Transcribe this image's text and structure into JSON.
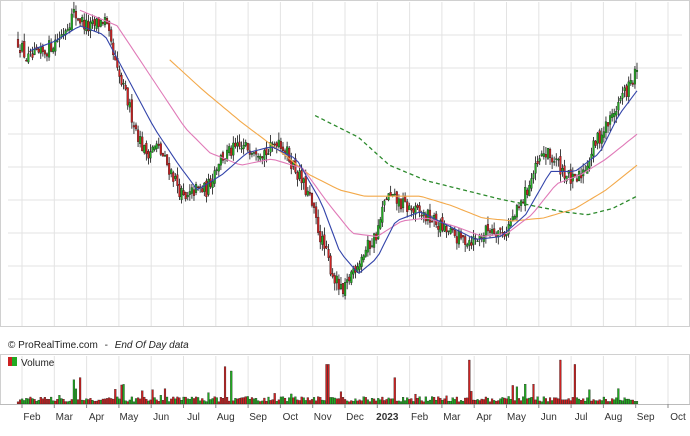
{
  "source_label": "© ProRealTime.com",
  "source_separator": "-",
  "eod_label": "End Of Day data",
  "volume_label": "Volume",
  "colors": {
    "up": "#22aa22",
    "down": "#cc2222",
    "wick": "#111111",
    "ma_fast": "#3344aa",
    "ma_mid": "#e07ab8",
    "ma_slow": "#f3a94a",
    "ma_long": "#2c8a2c",
    "grid": "#e3e3e3"
  },
  "chart_data": {
    "type": "line",
    "description_series": "daily candlestick price with 4 moving averages and volume bars",
    "x_axis_labels": [
      "Feb",
      "Mar",
      "Apr",
      "May",
      "Jun",
      "Jul",
      "Aug",
      "Sep",
      "Oct",
      "Nov",
      "Dec",
      "2023",
      "Feb",
      "Mar",
      "Apr",
      "May",
      "Jun",
      "Jul",
      "Aug",
      "Sep",
      "Oct"
    ],
    "x_axis_label_bold": [
      false,
      false,
      false,
      false,
      false,
      false,
      false,
      false,
      false,
      false,
      false,
      true,
      false,
      false,
      false,
      false,
      false,
      false,
      false,
      false,
      false
    ],
    "y_axis_labels": [],
    "ylim": [
      0,
      100
    ],
    "price_close_keypoints": [
      {
        "t": 0,
        "v": 88
      },
      {
        "t": 0.015,
        "v": 82
      },
      {
        "t": 0.04,
        "v": 84
      },
      {
        "t": 0.07,
        "v": 90
      },
      {
        "t": 0.09,
        "v": 97
      },
      {
        "t": 0.115,
        "v": 92
      },
      {
        "t": 0.14,
        "v": 95
      },
      {
        "t": 0.16,
        "v": 78
      },
      {
        "t": 0.175,
        "v": 70
      },
      {
        "t": 0.19,
        "v": 60
      },
      {
        "t": 0.205,
        "v": 52
      },
      {
        "t": 0.225,
        "v": 54
      },
      {
        "t": 0.25,
        "v": 45
      },
      {
        "t": 0.27,
        "v": 36
      },
      {
        "t": 0.285,
        "v": 40
      },
      {
        "t": 0.305,
        "v": 40
      },
      {
        "t": 0.325,
        "v": 50
      },
      {
        "t": 0.35,
        "v": 53
      },
      {
        "t": 0.38,
        "v": 54
      },
      {
        "t": 0.405,
        "v": 52
      },
      {
        "t": 0.42,
        "v": 57
      },
      {
        "t": 0.445,
        "v": 48
      },
      {
        "t": 0.47,
        "v": 38
      },
      {
        "t": 0.49,
        "v": 24
      },
      {
        "t": 0.51,
        "v": 12
      },
      {
        "t": 0.525,
        "v": 6
      },
      {
        "t": 0.54,
        "v": 14
      },
      {
        "t": 0.56,
        "v": 20
      },
      {
        "t": 0.58,
        "v": 26
      },
      {
        "t": 0.595,
        "v": 38
      },
      {
        "t": 0.615,
        "v": 36
      },
      {
        "t": 0.64,
        "v": 33
      },
      {
        "t": 0.665,
        "v": 31
      },
      {
        "t": 0.69,
        "v": 27
      },
      {
        "t": 0.715,
        "v": 24
      },
      {
        "t": 0.74,
        "v": 24
      },
      {
        "t": 0.765,
        "v": 28
      },
      {
        "t": 0.785,
        "v": 26
      },
      {
        "t": 0.81,
        "v": 34
      },
      {
        "t": 0.83,
        "v": 44
      },
      {
        "t": 0.85,
        "v": 52
      },
      {
        "t": 0.87,
        "v": 49
      },
      {
        "t": 0.89,
        "v": 44
      },
      {
        "t": 0.9,
        "v": 42
      },
      {
        "t": 0.915,
        "v": 47
      },
      {
        "t": 0.935,
        "v": 56
      },
      {
        "t": 0.955,
        "v": 62
      },
      {
        "t": 0.975,
        "v": 70
      },
      {
        "t": 0.99,
        "v": 74
      },
      {
        "t": 1,
        "v": 78
      }
    ],
    "ma_long_keypoints": [
      {
        "t": 0.48,
        "v": 64
      },
      {
        "t": 0.55,
        "v": 57
      },
      {
        "t": 0.6,
        "v": 48
      },
      {
        "t": 0.66,
        "v": 43
      },
      {
        "t": 0.72,
        "v": 40
      },
      {
        "t": 0.78,
        "v": 37
      },
      {
        "t": 0.83,
        "v": 35
      },
      {
        "t": 0.88,
        "v": 33
      },
      {
        "t": 0.92,
        "v": 32
      },
      {
        "t": 0.96,
        "v": 34
      },
      {
        "t": 1,
        "v": 38
      }
    ],
    "ma_slow_keypoints": [
      {
        "t": 0.245,
        "v": 82
      },
      {
        "t": 0.3,
        "v": 72
      },
      {
        "t": 0.36,
        "v": 62
      },
      {
        "t": 0.42,
        "v": 53
      },
      {
        "t": 0.47,
        "v": 45
      },
      {
        "t": 0.52,
        "v": 40
      },
      {
        "t": 0.56,
        "v": 38
      },
      {
        "t": 0.6,
        "v": 38
      },
      {
        "t": 0.65,
        "v": 38
      },
      {
        "t": 0.7,
        "v": 35
      },
      {
        "t": 0.75,
        "v": 31
      },
      {
        "t": 0.8,
        "v": 30
      },
      {
        "t": 0.85,
        "v": 31
      },
      {
        "t": 0.9,
        "v": 34
      },
      {
        "t": 0.95,
        "v": 40
      },
      {
        "t": 1,
        "v": 48
      }
    ],
    "ma_mid_keypoints": [
      {
        "t": 0.1,
        "v": 98
      },
      {
        "t": 0.16,
        "v": 93
      },
      {
        "t": 0.22,
        "v": 75
      },
      {
        "t": 0.27,
        "v": 60
      },
      {
        "t": 0.31,
        "v": 52
      },
      {
        "t": 0.36,
        "v": 48
      },
      {
        "t": 0.41,
        "v": 50
      },
      {
        "t": 0.46,
        "v": 47
      },
      {
        "t": 0.5,
        "v": 36
      },
      {
        "t": 0.54,
        "v": 26
      },
      {
        "t": 0.58,
        "v": 25
      },
      {
        "t": 0.62,
        "v": 30
      },
      {
        "t": 0.66,
        "v": 31
      },
      {
        "t": 0.71,
        "v": 28
      },
      {
        "t": 0.75,
        "v": 25
      },
      {
        "t": 0.79,
        "v": 26
      },
      {
        "t": 0.83,
        "v": 32
      },
      {
        "t": 0.87,
        "v": 42
      },
      {
        "t": 0.91,
        "v": 45
      },
      {
        "t": 0.95,
        "v": 50
      },
      {
        "t": 1,
        "v": 58
      }
    ],
    "ma_fast_keypoints": [
      {
        "t": 0.02,
        "v": 85
      },
      {
        "t": 0.06,
        "v": 88
      },
      {
        "t": 0.1,
        "v": 93
      },
      {
        "t": 0.14,
        "v": 90
      },
      {
        "t": 0.18,
        "v": 75
      },
      {
        "t": 0.22,
        "v": 60
      },
      {
        "t": 0.26,
        "v": 48
      },
      {
        "t": 0.29,
        "v": 40
      },
      {
        "t": 0.33,
        "v": 45
      },
      {
        "t": 0.37,
        "v": 52
      },
      {
        "t": 0.41,
        "v": 54
      },
      {
        "t": 0.45,
        "v": 50
      },
      {
        "t": 0.49,
        "v": 36
      },
      {
        "t": 0.52,
        "v": 20
      },
      {
        "t": 0.55,
        "v": 13
      },
      {
        "t": 0.58,
        "v": 18
      },
      {
        "t": 0.61,
        "v": 30
      },
      {
        "t": 0.65,
        "v": 33
      },
      {
        "t": 0.7,
        "v": 28
      },
      {
        "t": 0.74,
        "v": 24
      },
      {
        "t": 0.78,
        "v": 25
      },
      {
        "t": 0.82,
        "v": 32
      },
      {
        "t": 0.86,
        "v": 46
      },
      {
        "t": 0.9,
        "v": 46
      },
      {
        "t": 0.94,
        "v": 52
      },
      {
        "t": 0.97,
        "v": 64
      },
      {
        "t": 1,
        "v": 72
      }
    ],
    "volume_spikes": [
      {
        "t": 0.09,
        "v": 0.55
      },
      {
        "t": 0.1,
        "v": 0.6
      },
      {
        "t": 0.335,
        "v": 0.85
      },
      {
        "t": 0.345,
        "v": 0.75
      },
      {
        "t": 0.5,
        "v": 0.9
      },
      {
        "t": 0.61,
        "v": 0.6
      },
      {
        "t": 0.73,
        "v": 1.0
      },
      {
        "t": 0.875,
        "v": 1.0
      },
      {
        "t": 0.9,
        "v": 0.9
      },
      {
        "t": 0.82,
        "v": 0.45
      },
      {
        "t": 0.97,
        "v": 0.35
      },
      {
        "t": 0.2,
        "v": 0.3
      }
    ]
  }
}
